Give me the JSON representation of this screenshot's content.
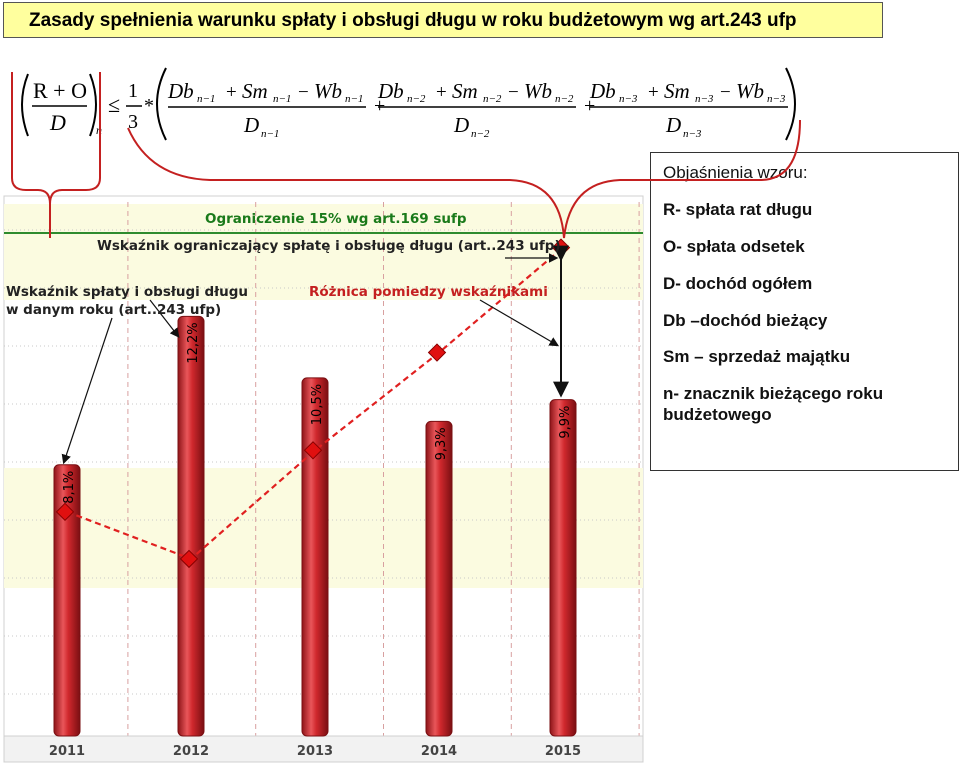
{
  "title": "Zasady spełnienia warunku spłaty i obsługi długu w roku budżetowym wg art.243 ufp",
  "formula": {
    "lhs_num": "R + O",
    "lhs_den": "D",
    "lhs_sub": "n",
    "relation": "≤",
    "coef_num": "1",
    "coef_den": "3",
    "mult": "*",
    "plus": "+",
    "terms": [
      {
        "num_db": "Db",
        "num_sm": "Sm",
        "num_wb": "Wb",
        "sub": "n−1",
        "den": "D",
        "op_plus": "+",
        "op_minus": "−"
      },
      {
        "num_db": "Db",
        "num_sm": "Sm",
        "num_wb": "Wb",
        "sub": "n−2",
        "den": "D",
        "op_plus": "+",
        "op_minus": "−"
      },
      {
        "num_db": "Db",
        "num_sm": "Sm",
        "num_wb": "Wb",
        "sub": "n−3",
        "den": "D",
        "op_plus": "+",
        "op_minus": "−"
      }
    ]
  },
  "explanation": {
    "heading": "Objaśnienia wzoru:",
    "items": [
      "R- spłata rat długu",
      "O- spłata odsetek",
      "D- dochód ogółem",
      "Db –dochód bieżący",
      "Sm – sprzedaż majątku",
      "n- znacznik bieżącego roku",
      "budżetowego"
    ]
  },
  "chart_data": {
    "type": "bar",
    "categories": [
      "2011",
      "2012",
      "2013",
      "2014",
      "2015"
    ],
    "values": [
      8.1,
      12.2,
      10.5,
      9.3,
      9.9
    ],
    "value_labels": [
      "8,1%",
      "12,2%",
      "10,5%",
      "9,3%",
      "9,9%"
    ],
    "ylim": [
      0,
      16
    ],
    "limit_line": {
      "value": 15,
      "label": "Ograniczenie 15% wg art.169 sufp",
      "color": "#2e8b2e"
    },
    "series": [
      {
        "values": [
          8.1,
          12.2,
          10.5,
          9.3,
          9.9
        ]
      },
      {
        "values": [
          6.8,
          5.5,
          8.5,
          11.2,
          14.1
        ]
      }
    ],
    "annotations": {
      "indicator_line": "Wskaźnik ograniczający spłatę i obsługę długu  (art..243 ufp)",
      "indicator_bar_1": "Wskaźnik  spłaty i obsługi długu",
      "indicator_bar_2": "w danym roku (art..243 ufp)",
      "difference": "Różnica pomiedzy wskaźnikami"
    },
    "colors": {
      "bar": "#c8252a",
      "marker": "#e01010",
      "line": "#e02020",
      "band": "#fbfbe0"
    }
  }
}
